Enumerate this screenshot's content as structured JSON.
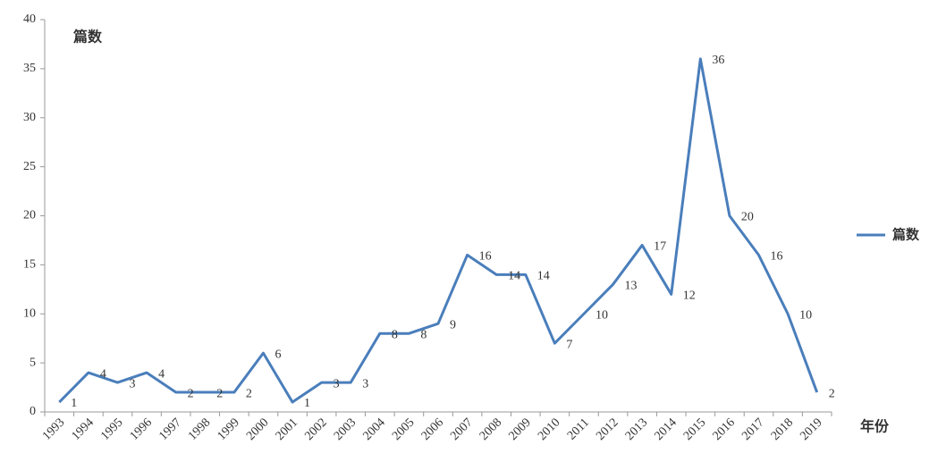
{
  "chart_data": {
    "type": "line",
    "y_axis_title": "篇数",
    "x_axis_title": "年份",
    "categories": [
      "1993",
      "1994",
      "1995",
      "1996",
      "1997",
      "1998",
      "1999",
      "2000",
      "2001",
      "2002",
      "2003",
      "2004",
      "2005",
      "2006",
      "2007",
      "2008",
      "2009",
      "2010",
      "2011",
      "2012",
      "2013",
      "2014",
      "2015",
      "2016",
      "2017",
      "2018",
      "2019"
    ],
    "series": [
      {
        "name": "篇数",
        "color": "#4a7ebb",
        "values": [
          1,
          4,
          3,
          4,
          2,
          2,
          2,
          6,
          1,
          3,
          3,
          8,
          8,
          9,
          16,
          14,
          14,
          7,
          10,
          13,
          17,
          12,
          36,
          20,
          16,
          10,
          2
        ]
      }
    ],
    "ylim": [
      0,
      40
    ],
    "yticks": [
      0,
      5,
      10,
      15,
      20,
      25,
      30,
      35,
      40
    ],
    "grid": false,
    "legend": "right"
  }
}
